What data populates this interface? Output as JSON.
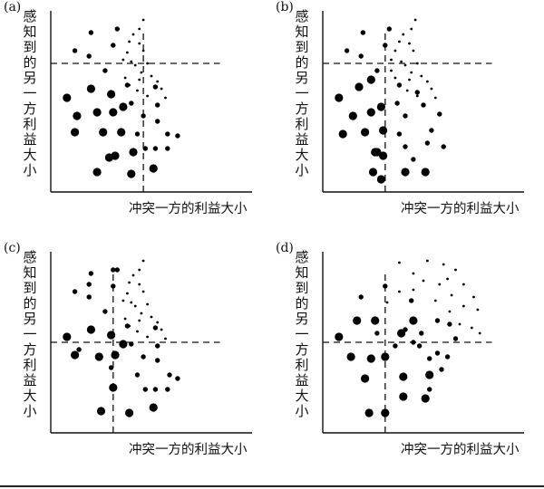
{
  "figure": {
    "y_axis_label": "感知到的另一方利益大小",
    "x_axis_label": "冲突一方的利益大小",
    "panels": [
      {
        "letter": "(a)",
        "quadrant_lines": {
          "vertical_x": 0.46,
          "horizontal_y": 0.71
        },
        "large_dots": [
          [
            0.08,
            0.52
          ],
          [
            0.2,
            0.57
          ],
          [
            0.3,
            0.54
          ],
          [
            0.13,
            0.42
          ],
          [
            0.23,
            0.44
          ],
          [
            0.31,
            0.44
          ],
          [
            0.36,
            0.47
          ],
          [
            0.12,
            0.33
          ],
          [
            0.26,
            0.33
          ],
          [
            0.35,
            0.33
          ],
          [
            0.32,
            0.2
          ],
          [
            0.29,
            0.19
          ],
          [
            0.41,
            0.22
          ],
          [
            0.23,
            0.11
          ],
          [
            0.4,
            0.1
          ],
          [
            0.51,
            0.13
          ]
        ],
        "medium_dots": [
          [
            0.19,
            0.75
          ],
          [
            0.31,
            0.81
          ],
          [
            0.33,
            0.9
          ],
          [
            0.2,
            0.88
          ],
          [
            0.12,
            0.78
          ],
          [
            0.27,
            0.67
          ],
          [
            0.38,
            0.59
          ],
          [
            0.4,
            0.49
          ],
          [
            0.46,
            0.42
          ],
          [
            0.43,
            0.32
          ],
          [
            0.47,
            0.24
          ],
          [
            0.52,
            0.24
          ],
          [
            0.58,
            0.24
          ],
          [
            0.58,
            0.32
          ],
          [
            0.63,
            0.31
          ],
          [
            0.53,
            0.39
          ],
          [
            0.53,
            0.48
          ],
          [
            0.52,
            0.58
          ]
        ],
        "small_dots": [
          [
            0.36,
            0.73
          ],
          [
            0.38,
            0.77
          ],
          [
            0.39,
            0.83
          ],
          [
            0.41,
            0.87
          ],
          [
            0.44,
            0.82
          ],
          [
            0.46,
            0.78
          ],
          [
            0.42,
            0.7
          ],
          [
            0.45,
            0.66
          ],
          [
            0.48,
            0.71
          ],
          [
            0.5,
            0.64
          ],
          [
            0.53,
            0.61
          ],
          [
            0.55,
            0.57
          ],
          [
            0.57,
            0.52
          ],
          [
            0.37,
            0.63
          ],
          [
            0.39,
            0.59
          ],
          [
            0.43,
            0.56
          ],
          [
            0.48,
            0.53
          ],
          [
            0.44,
            0.62
          ],
          [
            0.4,
            0.72
          ],
          [
            0.46,
            0.95
          ],
          [
            0.44,
            0.9
          ]
        ]
      },
      {
        "letter": "(b)",
        "quadrant_lines": {
          "vertical_x": 0.31,
          "horizontal_y": 0.71
        },
        "large_dots": [
          [
            0.08,
            0.52
          ],
          [
            0.18,
            0.58
          ],
          [
            0.24,
            0.62
          ],
          [
            0.15,
            0.42
          ],
          [
            0.24,
            0.44
          ],
          [
            0.29,
            0.47
          ],
          [
            0.1,
            0.32
          ],
          [
            0.21,
            0.33
          ],
          [
            0.3,
            0.34
          ],
          [
            0.27,
            0.22
          ],
          [
            0.26,
            0.22
          ],
          [
            0.3,
            0.2
          ],
          [
            0.25,
            0.11
          ],
          [
            0.29,
            0.07
          ],
          [
            0.41,
            0.11
          ],
          [
            0.51,
            0.11
          ]
        ],
        "medium_dots": [
          [
            0.19,
            0.75
          ],
          [
            0.31,
            0.81
          ],
          [
            0.33,
            0.9
          ],
          [
            0.2,
            0.88
          ],
          [
            0.12,
            0.78
          ],
          [
            0.27,
            0.67
          ],
          [
            0.38,
            0.59
          ],
          [
            0.37,
            0.49
          ],
          [
            0.41,
            0.42
          ],
          [
            0.38,
            0.32
          ],
          [
            0.41,
            0.25
          ],
          [
            0.45,
            0.18
          ],
          [
            0.52,
            0.27
          ],
          [
            0.54,
            0.34
          ],
          [
            0.58,
            0.43
          ],
          [
            0.6,
            0.25
          ],
          [
            0.5,
            0.48
          ],
          [
            0.47,
            0.55
          ]
        ],
        "small_dots": [
          [
            0.34,
            0.73
          ],
          [
            0.36,
            0.78
          ],
          [
            0.38,
            0.83
          ],
          [
            0.4,
            0.87
          ],
          [
            0.43,
            0.82
          ],
          [
            0.45,
            0.78
          ],
          [
            0.41,
            0.7
          ],
          [
            0.44,
            0.66
          ],
          [
            0.47,
            0.71
          ],
          [
            0.49,
            0.64
          ],
          [
            0.52,
            0.61
          ],
          [
            0.54,
            0.57
          ],
          [
            0.56,
            0.52
          ],
          [
            0.36,
            0.63
          ],
          [
            0.38,
            0.59
          ],
          [
            0.42,
            0.56
          ],
          [
            0.47,
            0.53
          ],
          [
            0.43,
            0.62
          ],
          [
            0.39,
            0.72
          ],
          [
            0.46,
            0.95
          ],
          [
            0.44,
            0.9
          ],
          [
            0.34,
            0.67
          ]
        ]
      },
      {
        "letter": "(c)",
        "quadrant_lines": {
          "vertical_x": 0.31,
          "horizontal_y": 0.5
        },
        "large_dots": [
          [
            0.08,
            0.53
          ],
          [
            0.2,
            0.57
          ],
          [
            0.3,
            0.54
          ],
          [
            0.12,
            0.43
          ],
          [
            0.24,
            0.42
          ],
          [
            0.32,
            0.43
          ],
          [
            0.36,
            0.49
          ],
          [
            0.31,
            0.25
          ],
          [
            0.25,
            0.12
          ],
          [
            0.39,
            0.11
          ],
          [
            0.51,
            0.14
          ]
        ],
        "medium_dots": [
          [
            0.19,
            0.75
          ],
          [
            0.31,
            0.81
          ],
          [
            0.33,
            0.9
          ],
          [
            0.2,
            0.88
          ],
          [
            0.12,
            0.78
          ],
          [
            0.27,
            0.67
          ],
          [
            0.38,
            0.59
          ],
          [
            0.4,
            0.49
          ],
          [
            0.46,
            0.42
          ],
          [
            0.43,
            0.32
          ],
          [
            0.47,
            0.24
          ],
          [
            0.52,
            0.24
          ],
          [
            0.58,
            0.24
          ],
          [
            0.59,
            0.32
          ],
          [
            0.63,
            0.3
          ],
          [
            0.53,
            0.4
          ],
          [
            0.53,
            0.48
          ],
          [
            0.52,
            0.58
          ],
          [
            0.3,
            0.36
          ],
          [
            0.14,
            0.46
          ],
          [
            0.19,
            0.82
          ],
          [
            0.31,
            0.9
          ]
        ],
        "small_dots": [
          [
            0.36,
            0.73
          ],
          [
            0.38,
            0.77
          ],
          [
            0.39,
            0.83
          ],
          [
            0.41,
            0.87
          ],
          [
            0.44,
            0.82
          ],
          [
            0.46,
            0.78
          ],
          [
            0.42,
            0.7
          ],
          [
            0.45,
            0.66
          ],
          [
            0.48,
            0.71
          ],
          [
            0.5,
            0.64
          ],
          [
            0.53,
            0.61
          ],
          [
            0.55,
            0.57
          ],
          [
            0.57,
            0.52
          ],
          [
            0.37,
            0.63
          ],
          [
            0.39,
            0.59
          ],
          [
            0.43,
            0.56
          ],
          [
            0.48,
            0.53
          ],
          [
            0.44,
            0.62
          ],
          [
            0.4,
            0.72
          ],
          [
            0.46,
            0.95
          ],
          [
            0.44,
            0.9
          ]
        ]
      },
      {
        "letter": "(d)",
        "quadrant_lines": {
          "vertical_x": 0.31,
          "horizontal_y": 0.5
        },
        "large_dots": [
          [
            0.08,
            0.53
          ],
          [
            0.17,
            0.62
          ],
          [
            0.26,
            0.62
          ],
          [
            0.14,
            0.42
          ],
          [
            0.24,
            0.41
          ],
          [
            0.31,
            0.42
          ],
          [
            0.45,
            0.62
          ],
          [
            0.39,
            0.55
          ],
          [
            0.21,
            0.3
          ],
          [
            0.4,
            0.31
          ],
          [
            0.53,
            0.32
          ],
          [
            0.51,
            0.19
          ],
          [
            0.23,
            0.11
          ],
          [
            0.31,
            0.11
          ],
          [
            0.4,
            0.2
          ]
        ],
        "medium_dots": [
          [
            0.19,
            0.75
          ],
          [
            0.31,
            0.81
          ],
          [
            0.49,
            0.55
          ],
          [
            0.57,
            0.62
          ],
          [
            0.63,
            0.6
          ],
          [
            0.57,
            0.44
          ],
          [
            0.59,
            0.35
          ],
          [
            0.66,
            0.52
          ],
          [
            0.41,
            0.57
          ],
          [
            0.36,
            0.48
          ],
          [
            0.48,
            0.48
          ],
          [
            0.53,
            0.24
          ],
          [
            0.62,
            0.42
          ],
          [
            0.27,
            0.55
          ],
          [
            0.45,
            0.5
          ],
          [
            0.44,
            0.73
          ],
          [
            0.53,
            0.41
          ]
        ],
        "small_dots": [
          [
            0.38,
            0.94
          ],
          [
            0.45,
            0.88
          ],
          [
            0.52,
            0.95
          ],
          [
            0.6,
            0.93
          ],
          [
            0.66,
            0.9
          ],
          [
            0.7,
            0.82
          ],
          [
            0.75,
            0.75
          ],
          [
            0.7,
            0.7
          ],
          [
            0.77,
            0.68
          ],
          [
            0.64,
            0.76
          ],
          [
            0.58,
            0.82
          ],
          [
            0.5,
            0.84
          ],
          [
            0.45,
            0.79
          ],
          [
            0.38,
            0.78
          ],
          [
            0.32,
            0.72
          ],
          [
            0.63,
            0.67
          ],
          [
            0.68,
            0.6
          ],
          [
            0.74,
            0.58
          ],
          [
            0.78,
            0.55
          ],
          [
            0.62,
            0.85
          ],
          [
            0.56,
            0.73
          ]
        ]
      }
    ]
  }
}
